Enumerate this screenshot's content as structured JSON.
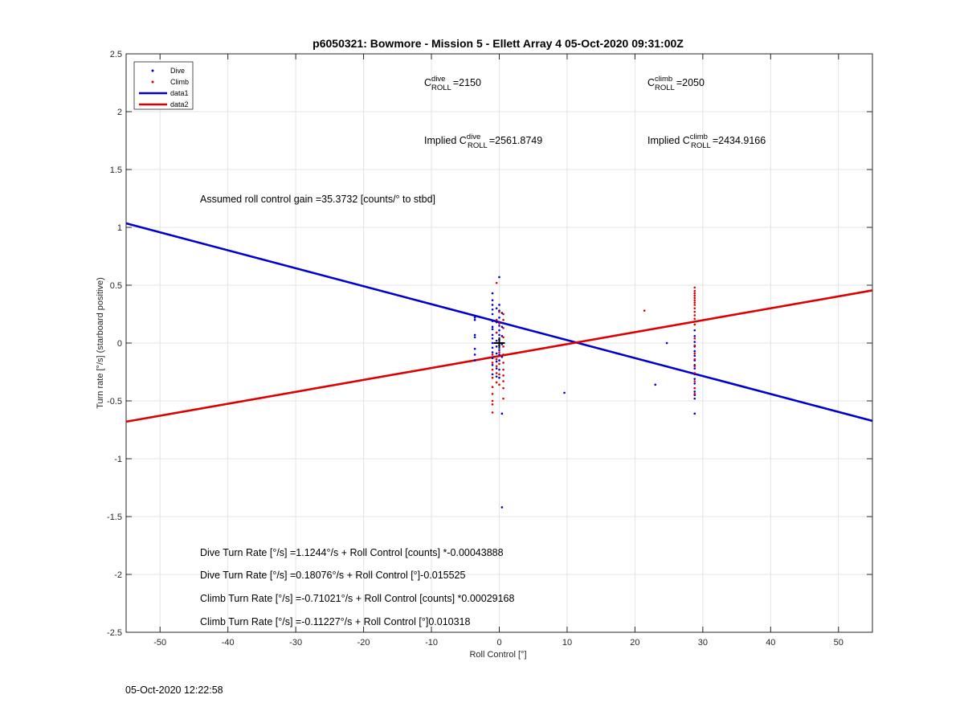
{
  "chart_data": {
    "type": "scatter",
    "title": "p6050321: Bowmore - Mission 5 - Ellett Array 4 05-Oct-2020 09:31:00Z",
    "xlabel": "Roll Control [°]",
    "ylabel": "Turn rate [°/s] (starboard positive)",
    "xlim": [
      -55,
      55
    ],
    "ylim": [
      -2.5,
      2.5
    ],
    "xticks": [
      -50,
      -40,
      -30,
      -20,
      -10,
      0,
      10,
      20,
      30,
      40,
      50
    ],
    "yticks": [
      2.5,
      2,
      1.5,
      1,
      0.5,
      0,
      -0.5,
      -1,
      -1.5,
      -2,
      -2.5
    ],
    "ytick_labels": [
      "2.5",
      "2",
      "1.5",
      "1",
      "0.5",
      "0",
      "-0.5",
      "-1",
      "-1.5",
      "-2",
      "-2.5"
    ],
    "grid": true,
    "legend_position": "top-left",
    "legend": [
      "Dive",
      "Climb",
      "data1",
      "data2"
    ],
    "series": [
      {
        "name": "Dive",
        "kind": "scatter",
        "color": "#0000cc",
        "points": [
          [
            -3.6,
            0.22
          ],
          [
            -3.6,
            0.2
          ],
          [
            -3.6,
            0.07
          ],
          [
            -3.6,
            0.05
          ],
          [
            -3.6,
            -0.05
          ],
          [
            -3.6,
            -0.1
          ],
          [
            -3.6,
            -0.15
          ],
          [
            -1.0,
            0.43
          ],
          [
            -1.0,
            0.37
          ],
          [
            -1.0,
            0.33
          ],
          [
            -1.0,
            0.29
          ],
          [
            -1.0,
            0.25
          ],
          [
            -1.0,
            0.19
          ],
          [
            -1.0,
            0.14
          ],
          [
            -1.0,
            0.12
          ],
          [
            -1.0,
            0.07
          ],
          [
            -1.0,
            0.04
          ],
          [
            -1.0,
            0.0
          ],
          [
            -1.0,
            -0.04
          ],
          [
            -1.0,
            -0.08
          ],
          [
            -1.0,
            -0.13
          ],
          [
            -1.0,
            -0.19
          ],
          [
            -1.0,
            -0.27
          ],
          [
            -0.4,
            0.3
          ],
          [
            -0.4,
            0.18
          ],
          [
            -0.4,
            0.09
          ],
          [
            -0.4,
            0.02
          ],
          [
            -0.4,
            -0.03
          ],
          [
            -0.4,
            -0.09
          ],
          [
            -0.4,
            -0.16
          ],
          [
            -0.4,
            -0.22
          ],
          [
            -0.4,
            -0.29
          ],
          [
            0.0,
            0.57
          ],
          [
            0.0,
            0.33
          ],
          [
            0.0,
            0.28
          ],
          [
            0.0,
            0.22
          ],
          [
            0.0,
            0.15
          ],
          [
            0.0,
            0.11
          ],
          [
            0.0,
            0.07
          ],
          [
            0.0,
            0.03
          ],
          [
            0.0,
            -0.02
          ],
          [
            0.0,
            -0.06
          ],
          [
            0.0,
            -0.1
          ],
          [
            0.0,
            -0.15
          ],
          [
            0.0,
            -0.23
          ],
          [
            0.0,
            -0.3
          ],
          [
            0.4,
            0.26
          ],
          [
            0.4,
            0.14
          ],
          [
            0.4,
            0.06
          ],
          [
            0.4,
            -0.01
          ],
          [
            0.4,
            -0.12
          ],
          [
            0.4,
            -0.61
          ],
          [
            0.4,
            -1.42
          ],
          [
            9.6,
            -0.43
          ],
          [
            23.0,
            -0.36
          ],
          [
            24.7,
            0.0
          ],
          [
            28.8,
            0.11
          ],
          [
            28.8,
            0.06
          ],
          [
            28.8,
            0.01
          ],
          [
            28.8,
            -0.03
          ],
          [
            28.8,
            -0.07
          ],
          [
            28.8,
            -0.11
          ],
          [
            28.8,
            -0.15
          ],
          [
            28.8,
            -0.19
          ],
          [
            28.8,
            -0.22
          ],
          [
            28.8,
            -0.27
          ],
          [
            28.8,
            -0.31
          ],
          [
            28.8,
            -0.35
          ],
          [
            28.8,
            -0.39
          ],
          [
            28.8,
            -0.42
          ],
          [
            28.8,
            -0.45
          ],
          [
            28.8,
            -0.48
          ],
          [
            28.8,
            -0.61
          ]
        ]
      },
      {
        "name": "Climb",
        "kind": "scatter",
        "color": "#dd0000",
        "points": [
          [
            -1.0,
            -0.1
          ],
          [
            -1.0,
            -0.17
          ],
          [
            -1.0,
            -0.23
          ],
          [
            -1.0,
            -0.3
          ],
          [
            -1.0,
            -0.38
          ],
          [
            -1.0,
            -0.44
          ],
          [
            -1.0,
            -0.5
          ],
          [
            -1.0,
            -0.53
          ],
          [
            -1.0,
            -0.6
          ],
          [
            -0.4,
            0.52
          ],
          [
            -0.4,
            0.2
          ],
          [
            -0.4,
            0.09
          ],
          [
            -0.4,
            -0.14
          ],
          [
            -0.4,
            -0.2
          ],
          [
            -0.4,
            -0.26
          ],
          [
            -0.4,
            -0.34
          ],
          [
            0.0,
            0.27
          ],
          [
            0.0,
            0.17
          ],
          [
            0.0,
            -0.08
          ],
          [
            0.0,
            -0.18
          ],
          [
            0.0,
            -0.27
          ],
          [
            0.0,
            -0.36
          ],
          [
            0.6,
            0.25
          ],
          [
            0.6,
            0.2
          ],
          [
            0.6,
            0.13
          ],
          [
            0.6,
            0.05
          ],
          [
            0.6,
            -0.03
          ],
          [
            0.6,
            -0.1
          ],
          [
            0.6,
            -0.17
          ],
          [
            0.6,
            -0.23
          ],
          [
            0.6,
            -0.28
          ],
          [
            0.6,
            -0.33
          ],
          [
            0.6,
            -0.39
          ],
          [
            0.6,
            -0.48
          ],
          [
            21.4,
            0.28
          ],
          [
            28.8,
            0.48
          ],
          [
            28.8,
            0.45
          ],
          [
            28.8,
            0.43
          ],
          [
            28.8,
            0.41
          ],
          [
            28.8,
            0.39
          ],
          [
            28.8,
            0.37
          ],
          [
            28.8,
            0.35
          ],
          [
            28.8,
            0.33
          ],
          [
            28.8,
            0.3
          ],
          [
            28.8,
            0.27
          ],
          [
            28.8,
            0.24
          ],
          [
            28.8,
            0.21
          ],
          [
            28.8,
            0.16
          ],
          [
            28.8,
            0.04
          ],
          [
            28.8,
            -0.02
          ],
          [
            28.8,
            -0.09
          ],
          [
            28.8,
            -0.14
          ],
          [
            28.8,
            -0.2
          ],
          [
            28.8,
            -0.26
          ],
          [
            28.8,
            -0.33
          ],
          [
            28.8,
            -0.39
          ],
          [
            28.8,
            -0.44
          ]
        ]
      },
      {
        "name": "data1",
        "kind": "line",
        "color": "#0000cc",
        "intercept": 0.18076,
        "slope": -0.015525
      },
      {
        "name": "data2",
        "kind": "line",
        "color": "#dd0000",
        "intercept": -0.11227,
        "slope": 0.010318
      }
    ],
    "marker": {
      "x": 0,
      "y": 0,
      "symbol": "+"
    },
    "annotations": {
      "c_dive": {
        "prefix": "C",
        "sup": "dive",
        "sub": "ROLL",
        "value": "=2150"
      },
      "c_climb": {
        "prefix": "C",
        "sup": "climb",
        "sub": "ROLL",
        "value": "=2050"
      },
      "implied_dive": {
        "prefix": "Implied C",
        "sup": "dive",
        "sub": "ROLL",
        "value": "=2561.8749"
      },
      "implied_climb": {
        "prefix": "Implied C",
        "sup": "climb",
        "sub": "ROLL",
        "value": "=2434.9166"
      },
      "gain": "Assumed roll control gain =35.3732 [counts/° to stbd]",
      "eq1": "Dive Turn Rate [°/s] =1.1244°/s + Roll Control [counts] *-0.00043888",
      "eq2": "Dive Turn Rate [°/s] =0.18076°/s + Roll Control [°]-0.015525",
      "eq3": "Climb Turn Rate [°/s] =-0.71021°/s + Roll Control [counts] *0.00029168",
      "eq4": "Climb Turn Rate [°/s] =-0.11227°/s + Roll Control [°]0.010318"
    }
  },
  "footer": {
    "timestamp": "05-Oct-2020 12:22:58"
  }
}
